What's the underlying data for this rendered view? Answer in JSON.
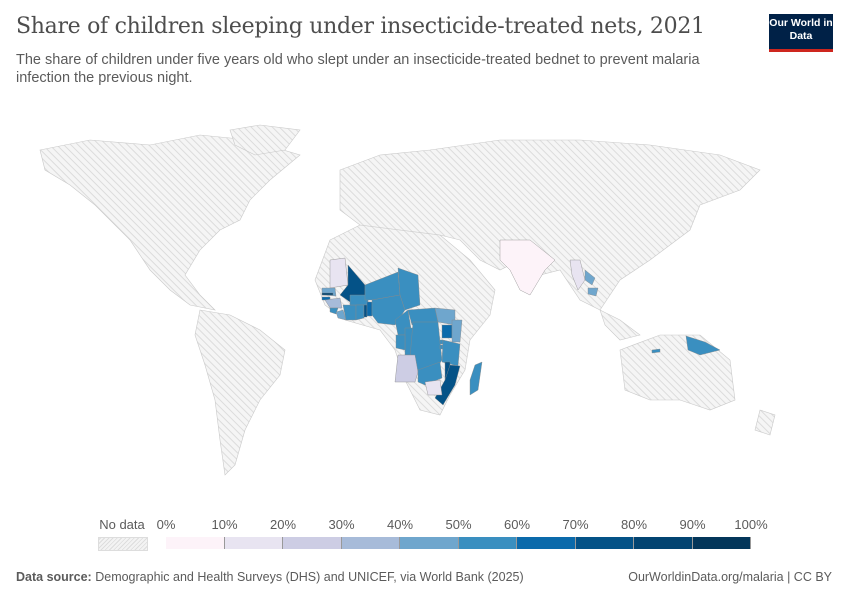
{
  "header": {
    "title": "Share of children sleeping under insecticide-treated nets, 2021",
    "subtitle": "The share of children under five years old who slept under an insecticide-treated bednet to prevent malaria infection the previous night.",
    "logo": "Our World in Data"
  },
  "legend": {
    "no_data_label": "No data",
    "ticks": [
      "0%",
      "10%",
      "20%",
      "30%",
      "40%",
      "50%",
      "60%",
      "70%",
      "80%",
      "90%",
      "100%"
    ],
    "colors": [
      "#fdf3f9",
      "#e8e4f1",
      "#cdcde4",
      "#a7bbd9",
      "#6fa6cd",
      "#3a8fc0",
      "#0b6aab",
      "#045287",
      "#024471",
      "#03365a"
    ],
    "no_data_color": "#ececec"
  },
  "map_data": {
    "type": "choropleth",
    "unit": "%",
    "year": 2021,
    "values": [
      {
        "country": "Mauritania",
        "value": 12
      },
      {
        "country": "Mali",
        "value": 72
      },
      {
        "country": "Senegal",
        "value": 45
      },
      {
        "country": "Gambia",
        "value": 85
      },
      {
        "country": "Guinea-Bissau",
        "value": 65
      },
      {
        "country": "Guinea",
        "value": 35
      },
      {
        "country": "Sierra Leone",
        "value": 58
      },
      {
        "country": "Liberia",
        "value": 45
      },
      {
        "country": "Cote d'Ivoire",
        "value": 55
      },
      {
        "country": "Burkina Faso",
        "value": 55
      },
      {
        "country": "Ghana",
        "value": 55
      },
      {
        "country": "Togo",
        "value": 70
      },
      {
        "country": "Benin",
        "value": 65
      },
      {
        "country": "Niger",
        "value": 55
      },
      {
        "country": "Nigeria",
        "value": 55
      },
      {
        "country": "Chad",
        "value": 55
      },
      {
        "country": "Cameroon",
        "value": 55
      },
      {
        "country": "Central African Republic",
        "value": 55
      },
      {
        "country": "Congo",
        "value": 55
      },
      {
        "country": "Gabon",
        "value": 55
      },
      {
        "country": "Democratic Republic of Congo",
        "value": 55
      },
      {
        "country": "South Sudan",
        "value": 45
      },
      {
        "country": "Uganda",
        "value": 65
      },
      {
        "country": "Kenya",
        "value": 45
      },
      {
        "country": "Rwanda",
        "value": 55
      },
      {
        "country": "Burundi",
        "value": 55
      },
      {
        "country": "Tanzania",
        "value": 55
      },
      {
        "country": "Angola",
        "value": 25
      },
      {
        "country": "Zambia",
        "value": 55
      },
      {
        "country": "Malawi",
        "value": 75
      },
      {
        "country": "Mozambique",
        "value": 72
      },
      {
        "country": "Zimbabwe",
        "value": 12
      },
      {
        "country": "Madagascar",
        "value": 55
      },
      {
        "country": "India",
        "value": 5
      },
      {
        "country": "Myanmar",
        "value": 15
      },
      {
        "country": "Laos",
        "value": 45
      },
      {
        "country": "Cambodia",
        "value": 45
      },
      {
        "country": "Papua New Guinea",
        "value": 50
      },
      {
        "country": "Timor",
        "value": 55
      }
    ]
  },
  "footer": {
    "source_label": "Data source:",
    "source": "Demographic and Health Surveys (DHS) and UNICEF, via World Bank (2025)",
    "url": "OurWorldinData.org/malaria | CC BY"
  }
}
